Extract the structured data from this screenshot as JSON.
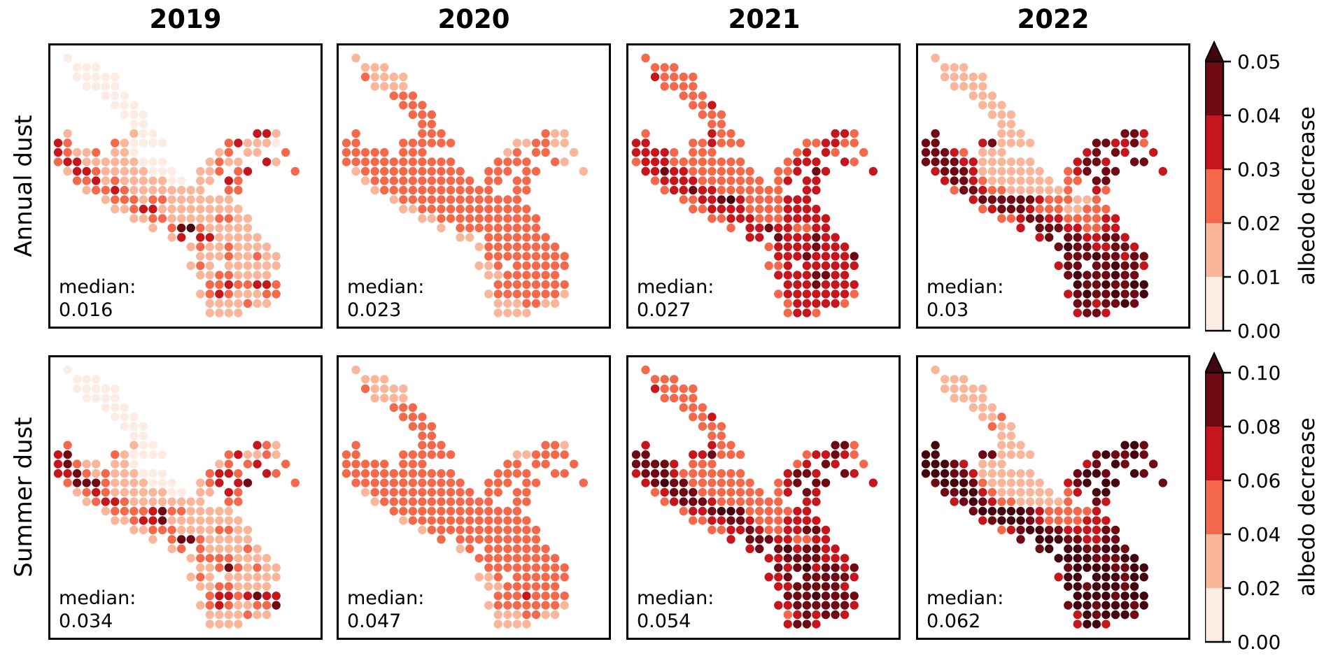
{
  "figure": {
    "col_titles": [
      "2019",
      "2020",
      "2021",
      "2022"
    ],
    "row_labels": [
      "Annual dust",
      "Summer dust"
    ],
    "colorbar_label": "albedo decrease",
    "median_prefix": "median:"
  },
  "palette": {
    "bins": [
      "#fcece3",
      "#fab69b",
      "#f4694b",
      "#c5161d",
      "#6d0a13",
      "#430610"
    ],
    "over_color": "#430610",
    "outline": "#000000"
  },
  "chart_data": {
    "type": "heatmap",
    "subtype": "dot-map-small-multiples",
    "description": "Glacier dot maps of albedo decrease (Reds, binned) for 2019-2022; rows: Annual dust and Summer dust; each dot colored by bin level 0-5 (5 = over-range arrow color)",
    "colorbars": [
      {
        "row": "Annual dust",
        "ticks": [
          "0.05",
          "0.04",
          "0.03",
          "0.02",
          "0.01",
          "0.00"
        ],
        "range": [
          0.0,
          0.05
        ],
        "bin_step": 0.01,
        "extend": "max",
        "label": "albedo decrease"
      },
      {
        "row": "Summer dust",
        "ticks": [
          "0.10",
          "0.08",
          "0.06",
          "0.04",
          "0.02",
          "0.00"
        ],
        "range": [
          0.0,
          0.1
        ],
        "bin_step": 0.02,
        "extend": "max",
        "label": "albedo decrease"
      }
    ],
    "dot_grid": [
      [
        1
      ],
      [
        2,
        3,
        4
      ],
      [
        2,
        3,
        4,
        5,
        6
      ],
      [
        3,
        4,
        5,
        6
      ],
      [
        5,
        6,
        7
      ],
      [
        6,
        7,
        8
      ],
      [
        7,
        8,
        9
      ],
      [
        8,
        9
      ],
      [
        1,
        8,
        9,
        10,
        21,
        22,
        23
      ],
      [
        0,
        1,
        6,
        7,
        8,
        9,
        10,
        11,
        18,
        19,
        20,
        21,
        22,
        23
      ],
      [
        0,
        1,
        2,
        3,
        4,
        6,
        7,
        8,
        17,
        18,
        20,
        21,
        24
      ],
      [
        0,
        1,
        2,
        3,
        4,
        5,
        6,
        7,
        8,
        9,
        10,
        11,
        16,
        17,
        18,
        19,
        22,
        23
      ],
      [
        1,
        2,
        3,
        4,
        5,
        6,
        7,
        8,
        9,
        10,
        11,
        12,
        15,
        16,
        17,
        19,
        20,
        25
      ],
      [
        2,
        3,
        4,
        5,
        6,
        7,
        8,
        9,
        10,
        11,
        12,
        13,
        15,
        16,
        18,
        19
      ],
      [
        3,
        4,
        5,
        6,
        7,
        8,
        9,
        10,
        11,
        12,
        13,
        14,
        15,
        18,
        19
      ],
      [
        5,
        6,
        7,
        8,
        9,
        10,
        11,
        12,
        13,
        14,
        15,
        16,
        17,
        18
      ],
      [
        6,
        7,
        8,
        9,
        10,
        11,
        12,
        13,
        14,
        15,
        16,
        17,
        18,
        19
      ],
      [
        8,
        9,
        10,
        11,
        12,
        13,
        14,
        15,
        16,
        17,
        18,
        19,
        20
      ],
      [
        10,
        12,
        13,
        14,
        15,
        16,
        17,
        18,
        19,
        20
      ],
      [
        12,
        13,
        15,
        16,
        17,
        18,
        19,
        20,
        21
      ],
      [
        14,
        15,
        16,
        17,
        18,
        19,
        20,
        21,
        22
      ],
      [
        15,
        16,
        17,
        18,
        19,
        20,
        21,
        22,
        23
      ],
      [
        14,
        15,
        16,
        18,
        19,
        20,
        21,
        22,
        23
      ],
      [
        15,
        16,
        17,
        18,
        19,
        20,
        21,
        22
      ],
      [
        16,
        17,
        18,
        19,
        20,
        21,
        22,
        23
      ],
      [
        15,
        16,
        17,
        18,
        19,
        20,
        21,
        22,
        23
      ],
      [
        16,
        17,
        18,
        19,
        20,
        21,
        22
      ],
      [
        16,
        17,
        18,
        19
      ]
    ],
    "panels": [
      {
        "id": "annual-2019",
        "row": "Annual dust",
        "year": "2019",
        "median": "0.016",
        "levels": [
          "0",
          "000",
          "00000",
          "0000",
          "000",
          "000",
          "000",
          "00",
          "1100331",
          "32210000231110",
          "3211211012112",
          "233111111000121131",
          "133211111000112232",
          "2231211111001132",
          "122321111111122",
          "12221221111111",
          "11233111111111",
          "1122111112211",
          "1245211111",
          "133311111",
          "121121111",
          "111211211",
          "121111111",
          "11221111",
          "22322332",
          "123211122",
          "1111211",
          "1111"
        ]
      },
      {
        "id": "annual-2020",
        "row": "Annual dust",
        "year": "2020",
        "median": "0.023",
        "levels": [
          "1",
          "111",
          "21111",
          "1111",
          "222",
          "222",
          "222",
          "22",
          "2222211",
          "22222222112211",
          "2222222212221",
          "222222222222222221",
          "122222222222222221",
          "1222222222222222",
          "122222222222222",
          "12222222222222",
          "11222222222222",
          "1122222222222",
          "1222222222",
          "112222222",
          "122222222",
          "222222222",
          "112222222",
          "11222222",
          "22222222",
          "122222221",
          "1112211",
          "1111"
        ]
      },
      {
        "id": "annual-2021",
        "row": "Annual dust",
        "year": "2021",
        "median": "0.027",
        "levels": [
          "2",
          "222",
          "32222",
          "2222",
          "222",
          "223",
          "222",
          "22",
          "2322332",
          "33223222223322",
          "3333222223322",
          "233322222222233332",
          "334332222222223433",
          "2333322222222333",
          "233433222222233",
          "22334532222333",
          "22333322223333",
          "2233322233333",
          "2334332233",
          "334333433",
          "233334333",
          "333433334",
          "223333333",
          "33334433",
          "33343333",
          "233333332",
          "2333332",
          "2332"
        ]
      },
      {
        "id": "annual-2022",
        "row": "Annual dust",
        "year": "2022",
        "median": "0.03",
        "levels": [
          "1",
          "111",
          "11111",
          "1111",
          "111",
          "111",
          "111",
          "11",
          "4111443",
          "44341111443342",
          "4443211134433",
          "444433111111344344",
          "344431111111234443",
          "3443211111112244",
          "244322111111232",
          "34444443222112",
          "23444322211222",
          "2234433222233",
          "3444332233",
          "344433443",
          "454433443",
          "444544344",
          "344445443",
          "45444544",
          "54454455",
          "345445445",
          "4434454",
          "3443"
        ]
      },
      {
        "id": "summer-2019",
        "row": "Summer dust",
        "year": "2019",
        "median": "0.034",
        "levels": [
          "0",
          "000",
          "00000",
          "0000",
          "000",
          "000",
          "000",
          "00",
          "2100321",
          "34210000231121",
          "3421111012232",
          "334212111000233232",
          "244421111000123342",
          "1232111111001132",
          "123321111111122",
          "12222342211111",
          "11233411111111",
          "1122211112211",
          "1244211111",
          "122111121",
          "122221111",
          "112421211",
          "121111111",
          "11221111",
          "23323433",
          "123211224",
          "1111211",
          "1111"
        ]
      },
      {
        "id": "summer-2020",
        "row": "Summer dust",
        "year": "2020",
        "median": "0.047",
        "levels": [
          "1",
          "111",
          "21111",
          "1111",
          "222",
          "222",
          "222",
          "22",
          "2222221",
          "22222222112222",
          "2222222222222",
          "222222222222222222",
          "222222222222222222",
          "1222222222222222",
          "122222222222222",
          "22222222222222",
          "12222222222222",
          "1222222222222",
          "2222222222",
          "122222222",
          "222222222",
          "222222222",
          "112222222",
          "11222222",
          "22232222",
          "122222221",
          "1112211",
          "1111"
        ]
      },
      {
        "id": "summer-2021",
        "row": "Summer dust",
        "year": "2021",
        "median": "0.054",
        "levels": [
          "2",
          "222",
          "32222",
          "2222",
          "222",
          "223",
          "222",
          "22",
          "3322442",
          "44334222233432",
          "4444322223432",
          "344432222222344343",
          "345442222222234443",
          "2344422222222343",
          "234443222222233",
          "23345542222233",
          "22334432223333",
          "2233432233443",
          "3444332233",
          "344534433",
          "334444333",
          "434534434",
          "334444443",
          "33444443",
          "44454444",
          "334444443",
          "2343443",
          "3443"
        ]
      },
      {
        "id": "summer-2022",
        "row": "Summer dust",
        "year": "2022",
        "median": "0.062",
        "levels": [
          "1",
          "111",
          "11111",
          "1111",
          "111",
          "112",
          "211",
          "11",
          "5111554",
          "55441111454454",
          "5554311134544",
          "555443111111455454",
          "455542111111345554",
          "4455321111112355",
          "345432211111243",
          "45555543222223",
          "34555432222333",
          "2345544333344",
          "4555443344",
          "455544554",
          "555544455",
          "455554455",
          "355555455",
          "55455545",
          "55554555",
          "455455545",
          "3545554",
          "3553"
        ]
      }
    ],
    "medians": {
      "annual": [
        0.016,
        0.023,
        0.027,
        0.03
      ],
      "summer": [
        0.034,
        0.047,
        0.054,
        0.062
      ]
    }
  },
  "layout_note": "levels digit 0-5 maps to palette.bins"
}
